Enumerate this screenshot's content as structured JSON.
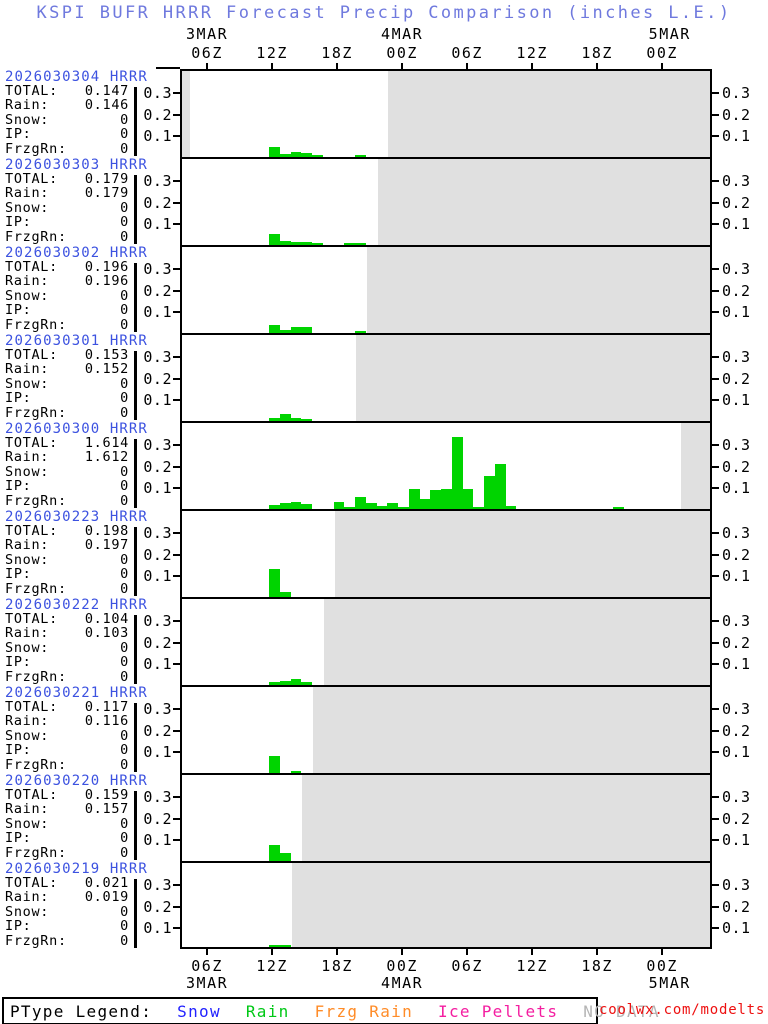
{
  "title": "KSPI BUFR HRRR Forecast Precip Comparison (inches L.E.)",
  "credit": "coolwx.com/modelts",
  "colors": {
    "title_blue": "#6f79de",
    "run_label_blue": "#3c52e0",
    "bar_green": "#00d400",
    "no_data_gray": "#e0e0e0",
    "legend_snow": "#2222ff",
    "legend_rain": "#00c816",
    "legend_frzg_rain": "#ff8c28",
    "legend_ice_pellets": "#f41ea0",
    "legend_no_data": "#b4b4b4",
    "credit_red": "#ee1010"
  },
  "time_axis": {
    "ticks": [
      {
        "label": "06Z",
        "hour": 6
      },
      {
        "label": "12Z",
        "hour": 12
      },
      {
        "label": "18Z",
        "hour": 18
      },
      {
        "label": "00Z",
        "hour": 24
      },
      {
        "label": "06Z",
        "hour": 30
      },
      {
        "label": "12Z",
        "hour": 36
      },
      {
        "label": "18Z",
        "hour": 42
      },
      {
        "label": "00Z",
        "hour": 48
      }
    ],
    "dates": [
      {
        "label": "3MAR",
        "hour": 6
      },
      {
        "label": "4MAR",
        "hour": 24
      },
      {
        "label": "5MAR",
        "hour": 48.7
      }
    ]
  },
  "y_axis": {
    "ticks": [
      {
        "label": "0.1",
        "value": 0.1
      },
      {
        "label": "0.2",
        "value": 0.2
      },
      {
        "label": "0.3",
        "value": 0.3
      }
    ]
  },
  "stats_labels": [
    "TOTAL:",
    "Rain:",
    "Snow:",
    "IP:",
    "FrzgRn:"
  ],
  "stats_keys": [
    "TOTAL",
    "Rain",
    "Snow",
    "IP",
    "FrzgRn"
  ],
  "legend": {
    "title": "PType Legend:",
    "items": [
      {
        "label": "Snow",
        "color": "#2222ff"
      },
      {
        "label": "Rain",
        "color": "#00c816"
      },
      {
        "label": "Frzg Rain",
        "color": "#ff8c28"
      },
      {
        "label": "Ice Pellets",
        "color": "#f41ea0"
      },
      {
        "label": "NO DATA",
        "color": "#b4b4b4"
      }
    ]
  },
  "chart_data": {
    "type": "bar",
    "units": "inches liquid equivalent",
    "x_axis_hours_from_3mar_00z": [
      3.5,
      52.6
    ],
    "bar_width_hours": 1,
    "ylim": [
      0,
      0.415
    ],
    "panels": [
      {
        "run": "2026030304 HRRR",
        "stats": {
          "TOTAL": "0.147",
          "Rain": "0.146",
          "Snow": "0",
          "IP": "0",
          "FrzgRn": "0"
        },
        "bars": [
          [
            12,
            0.045
          ],
          [
            13,
            0.015
          ],
          [
            14,
            0.025
          ],
          [
            15,
            0.018
          ],
          [
            16,
            0.01
          ],
          [
            20,
            0.006
          ]
        ],
        "no_data_hours": [
          [
            3.5,
            4.2
          ],
          [
            22.7,
            52.6
          ]
        ]
      },
      {
        "run": "2026030303 HRRR",
        "stats": {
          "TOTAL": "0.179",
          "Rain": "0.179",
          "Snow": "0",
          "IP": "0",
          "FrzgRn": "0"
        },
        "bars": [
          [
            12,
            0.052
          ],
          [
            13,
            0.02
          ],
          [
            14,
            0.013
          ],
          [
            15,
            0.013
          ],
          [
            16,
            0.009
          ],
          [
            19,
            0.004
          ],
          [
            20,
            0.005
          ]
        ],
        "no_data_hours": [
          [
            21.7,
            52.6
          ]
        ]
      },
      {
        "run": "2026030302 HRRR",
        "stats": {
          "TOTAL": "0.196",
          "Rain": "0.196",
          "Snow": "0",
          "IP": "0",
          "FrzgRn": "0"
        },
        "bars": [
          [
            12,
            0.04
          ],
          [
            13,
            0.012
          ],
          [
            14,
            0.03
          ],
          [
            15,
            0.028
          ],
          [
            20,
            0.004
          ]
        ],
        "no_data_hours": [
          [
            20.7,
            52.6
          ]
        ]
      },
      {
        "run": "2026030301 HRRR",
        "stats": {
          "TOTAL": "0.153",
          "Rain": "0.152",
          "Snow": "0",
          "IP": "0",
          "FrzgRn": "0"
        },
        "bars": [
          [
            12,
            0.012
          ],
          [
            13,
            0.035
          ],
          [
            14,
            0.014
          ],
          [
            15,
            0.006
          ]
        ],
        "no_data_hours": [
          [
            19.7,
            52.6
          ]
        ]
      },
      {
        "run": "2026030300 HRRR",
        "stats": {
          "TOTAL": "1.614",
          "Rain": "1.612",
          "Snow": "0",
          "IP": "0",
          "FrzgRn": "0"
        },
        "bars": [
          [
            12,
            0.02
          ],
          [
            13,
            0.03
          ],
          [
            14,
            0.035
          ],
          [
            15,
            0.025
          ],
          [
            18,
            0.035
          ],
          [
            19,
            0.005
          ],
          [
            20,
            0.055
          ],
          [
            21,
            0.03
          ],
          [
            22,
            0.012
          ],
          [
            23,
            0.027
          ],
          [
            24,
            0.01
          ],
          [
            25,
            0.095
          ],
          [
            26,
            0.045
          ],
          [
            27,
            0.09
          ],
          [
            28,
            0.095
          ],
          [
            29,
            0.34
          ],
          [
            30,
            0.095
          ],
          [
            31,
            0.005
          ],
          [
            32,
            0.155
          ],
          [
            33,
            0.21
          ],
          [
            34,
            0.015
          ],
          [
            44,
            0.01
          ]
        ],
        "no_data_hours": [
          [
            49.9,
            52.6
          ]
        ]
      },
      {
        "run": "2026030223 HRRR",
        "stats": {
          "TOTAL": "0.198",
          "Rain": "0.197",
          "Snow": "0",
          "IP": "0",
          "FrzgRn": "0"
        },
        "bars": [
          [
            12,
            0.13
          ],
          [
            13,
            0.025
          ]
        ],
        "no_data_hours": [
          [
            17.7,
            52.6
          ]
        ]
      },
      {
        "run": "2026030222 HRRR",
        "stats": {
          "TOTAL": "0.104",
          "Rain": "0.103",
          "Snow": "0",
          "IP": "0",
          "FrzgRn": "0"
        },
        "bars": [
          [
            12,
            0.015
          ],
          [
            13,
            0.02
          ],
          [
            14,
            0.028
          ],
          [
            15,
            0.012
          ]
        ],
        "no_data_hours": [
          [
            16.7,
            52.6
          ]
        ]
      },
      {
        "run": "2026030221 HRRR",
        "stats": {
          "TOTAL": "0.117",
          "Rain": "0.116",
          "Snow": "0",
          "IP": "0",
          "FrzgRn": "0"
        },
        "bars": [
          [
            12,
            0.078
          ],
          [
            14,
            0.009
          ]
        ],
        "no_data_hours": [
          [
            15.7,
            52.6
          ]
        ]
      },
      {
        "run": "2026030220 HRRR",
        "stats": {
          "TOTAL": "0.159",
          "Rain": "0.157",
          "Snow": "0",
          "IP": "0",
          "FrzgRn": "0"
        },
        "bars": [
          [
            12,
            0.075
          ],
          [
            13,
            0.04
          ]
        ],
        "no_data_hours": [
          [
            14.7,
            52.6
          ]
        ]
      },
      {
        "run": "2026030219 HRRR",
        "stats": {
          "TOTAL": "0.021",
          "Rain": "0.019",
          "Snow": "0",
          "IP": "0",
          "FrzgRn": "0"
        },
        "bars": [
          [
            12,
            0.01
          ],
          [
            13,
            0.006
          ]
        ],
        "no_data_hours": [
          [
            13.7,
            52.6
          ]
        ]
      }
    ]
  }
}
